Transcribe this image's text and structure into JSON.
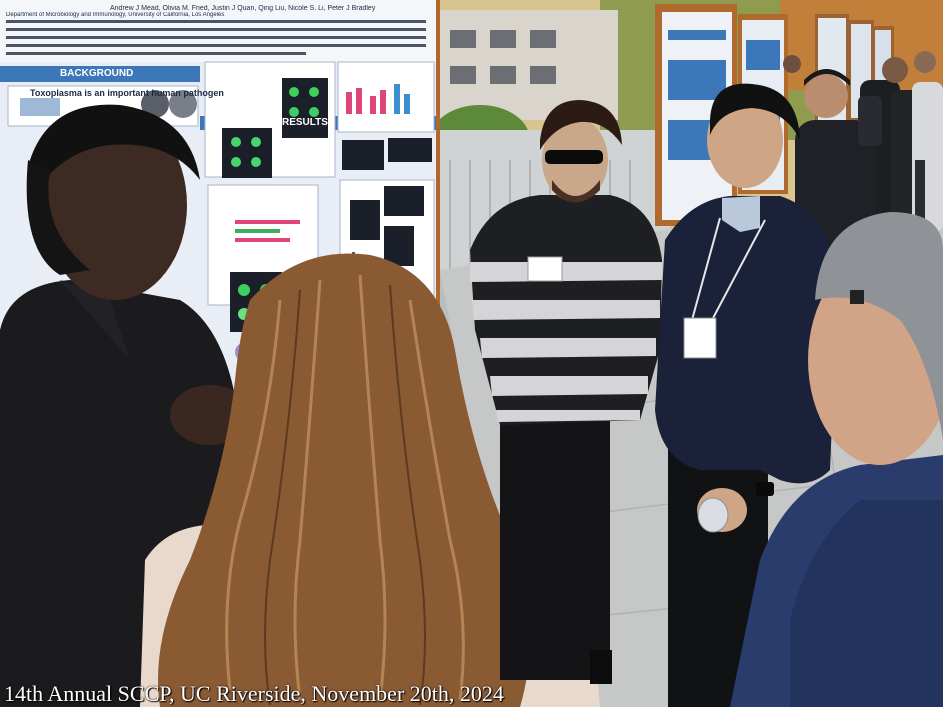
{
  "photo": {
    "poster": {
      "authors": "Andrew J Mead, Olivia M. Fried, Justin J Quan, Qing Liu, Nicole S. Li, Peter J Bradley",
      "department": "Department of Microbiology and Immunology, University of California, Los Angeles",
      "background_header": "BACKGROUND",
      "background_heading": "Toxoplasma is an important human pathogen",
      "results_header": "RESULTS"
    },
    "caption": "14th Annual SCCP, UC Riverside, November 20th, 2024",
    "colors": {
      "poster_blue": "#3b77b9",
      "poster_bg": "#e9eef6",
      "frame_wood": "#b0682b"
    }
  }
}
